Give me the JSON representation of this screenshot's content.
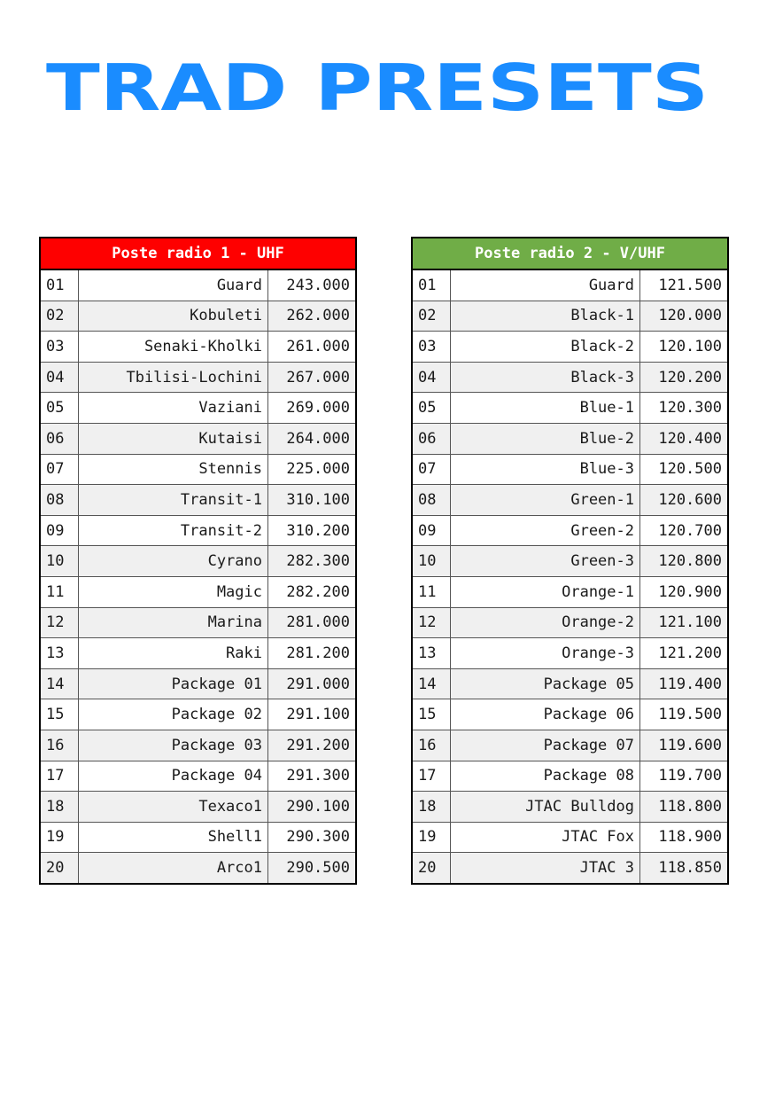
{
  "page": {
    "title": "TRAD PRESETS",
    "title_color": "#1a8cff"
  },
  "tables": [
    {
      "header": "Poste radio 1 - UHF",
      "header_color": "#fe0000",
      "rows": [
        {
          "num": "01",
          "name": "Guard",
          "freq": "243.000"
        },
        {
          "num": "02",
          "name": "Kobuleti",
          "freq": "262.000"
        },
        {
          "num": "03",
          "name": "Senaki-Kholki",
          "freq": "261.000"
        },
        {
          "num": "04",
          "name": "Tbilisi-Lochini",
          "freq": "267.000"
        },
        {
          "num": "05",
          "name": "Vaziani",
          "freq": "269.000"
        },
        {
          "num": "06",
          "name": "Kutaisi",
          "freq": "264.000"
        },
        {
          "num": "07",
          "name": "Stennis",
          "freq": "225.000"
        },
        {
          "num": "08",
          "name": "Transit-1",
          "freq": "310.100"
        },
        {
          "num": "09",
          "name": "Transit-2",
          "freq": "310.200"
        },
        {
          "num": "10",
          "name": "Cyrano",
          "freq": "282.300"
        },
        {
          "num": "11",
          "name": "Magic",
          "freq": "282.200"
        },
        {
          "num": "12",
          "name": "Marina",
          "freq": "281.000"
        },
        {
          "num": "13",
          "name": "Raki",
          "freq": "281.200"
        },
        {
          "num": "14",
          "name": "Package 01",
          "freq": "291.000"
        },
        {
          "num": "15",
          "name": "Package 02",
          "freq": "291.100"
        },
        {
          "num": "16",
          "name": "Package 03",
          "freq": "291.200"
        },
        {
          "num": "17",
          "name": "Package 04",
          "freq": "291.300"
        },
        {
          "num": "18",
          "name": "Texaco1",
          "freq": "290.100"
        },
        {
          "num": "19",
          "name": "Shell1",
          "freq": "290.300"
        },
        {
          "num": "20",
          "name": "Arco1",
          "freq": "290.500"
        }
      ]
    },
    {
      "header": "Poste radio 2 - V/UHF",
      "header_color": "#70ad47",
      "rows": [
        {
          "num": "01",
          "name": "Guard",
          "freq": "121.500"
        },
        {
          "num": "02",
          "name": "Black-1",
          "freq": "120.000"
        },
        {
          "num": "03",
          "name": "Black-2",
          "freq": "120.100"
        },
        {
          "num": "04",
          "name": "Black-3",
          "freq": "120.200"
        },
        {
          "num": "05",
          "name": "Blue-1",
          "freq": "120.300"
        },
        {
          "num": "06",
          "name": "Blue-2",
          "freq": "120.400"
        },
        {
          "num": "07",
          "name": "Blue-3",
          "freq": "120.500"
        },
        {
          "num": "08",
          "name": "Green-1",
          "freq": "120.600"
        },
        {
          "num": "09",
          "name": "Green-2",
          "freq": "120.700"
        },
        {
          "num": "10",
          "name": "Green-3",
          "freq": "120.800"
        },
        {
          "num": "11",
          "name": "Orange-1",
          "freq": "120.900"
        },
        {
          "num": "12",
          "name": "Orange-2",
          "freq": "121.100"
        },
        {
          "num": "13",
          "name": "Orange-3",
          "freq": "121.200"
        },
        {
          "num": "14",
          "name": "Package 05",
          "freq": "119.400"
        },
        {
          "num": "15",
          "name": "Package 06",
          "freq": "119.500"
        },
        {
          "num": "16",
          "name": "Package 07",
          "freq": "119.600"
        },
        {
          "num": "17",
          "name": "Package 08",
          "freq": "119.700"
        },
        {
          "num": "18",
          "name": "JTAC Bulldog",
          "freq": "118.800"
        },
        {
          "num": "19",
          "name": "JTAC Fox",
          "freq": "118.900"
        },
        {
          "num": "20",
          "name": "JTAC 3",
          "freq": "118.850"
        }
      ]
    }
  ]
}
